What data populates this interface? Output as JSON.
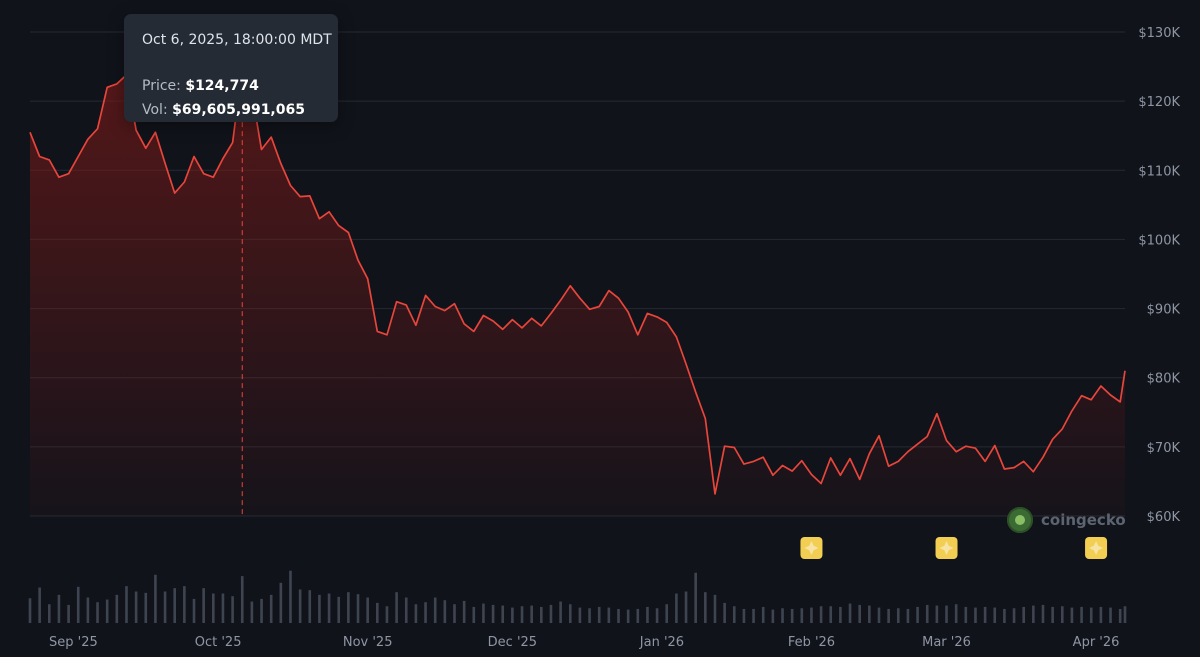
{
  "chart_data": {
    "type": "line",
    "title": "",
    "xlabel": "",
    "ylabel": "",
    "y_axis": {
      "ticks": [
        "$60K",
        "$70K",
        "$80K",
        "$90K",
        "$100K",
        "$110K",
        "$120K",
        "$130K"
      ],
      "values": [
        60000,
        70000,
        80000,
        90000,
        100000,
        110000,
        120000,
        130000
      ],
      "ylim": [
        60000,
        130000
      ]
    },
    "x_axis": {
      "ticks": [
        "Sep '25",
        "Oct '25",
        "Nov '25",
        "Dec '25",
        "Jan '26",
        "Feb '26",
        "Mar '26",
        "Apr '26"
      ],
      "dates": [
        "2025-09-01",
        "2025-10-01",
        "2025-11-01",
        "2025-12-01",
        "2026-01-01",
        "2026-02-01",
        "2026-03-01",
        "2026-04-01"
      ],
      "xlim": [
        "2025-08-23",
        "2026-04-07"
      ]
    },
    "series": [
      {
        "type": "line",
        "x": [
          "2025-08-23",
          "2025-08-25",
          "2025-08-27",
          "2025-08-29",
          "2025-08-31",
          "2025-09-02",
          "2025-09-04",
          "2025-09-06",
          "2025-09-08",
          "2025-09-10",
          "2025-09-12",
          "2025-09-14",
          "2025-09-16",
          "2025-09-18",
          "2025-09-20",
          "2025-09-22",
          "2025-09-24",
          "2025-09-26",
          "2025-09-28",
          "2025-09-30",
          "2025-10-02",
          "2025-10-04",
          "2025-10-06",
          "2025-10-08",
          "2025-10-10",
          "2025-10-12",
          "2025-10-14",
          "2025-10-16",
          "2025-10-18",
          "2025-10-20",
          "2025-10-22",
          "2025-10-24",
          "2025-10-26",
          "2025-10-28",
          "2025-10-30",
          "2025-11-01",
          "2025-11-03",
          "2025-11-05",
          "2025-11-07",
          "2025-11-09",
          "2025-11-11",
          "2025-11-13",
          "2025-11-15",
          "2025-11-17",
          "2025-11-19",
          "2025-11-21",
          "2025-11-23",
          "2025-11-25",
          "2025-11-27",
          "2025-11-29",
          "2025-12-01",
          "2025-12-03",
          "2025-12-05",
          "2025-12-07",
          "2025-12-09",
          "2025-12-11",
          "2025-12-13",
          "2025-12-15",
          "2025-12-17",
          "2025-12-19",
          "2025-12-21",
          "2025-12-23",
          "2025-12-25",
          "2025-12-27",
          "2025-12-29",
          "2025-12-31",
          "2026-01-02",
          "2026-01-04",
          "2026-01-06",
          "2026-01-08",
          "2026-01-10",
          "2026-01-12",
          "2026-01-14",
          "2026-01-16",
          "2026-01-18",
          "2026-01-20",
          "2026-01-22",
          "2026-01-24",
          "2026-01-26",
          "2026-01-28",
          "2026-01-30",
          "2026-02-01",
          "2026-02-03",
          "2026-02-05",
          "2026-02-07",
          "2026-02-09",
          "2026-02-11",
          "2026-02-13",
          "2026-02-15",
          "2026-02-17",
          "2026-02-19",
          "2026-02-21",
          "2026-02-23",
          "2026-02-25",
          "2026-02-27",
          "2026-03-01",
          "2026-03-03",
          "2026-03-05",
          "2026-03-07",
          "2026-03-09",
          "2026-03-11",
          "2026-03-13",
          "2026-03-15",
          "2026-03-17",
          "2026-03-19",
          "2026-03-21",
          "2026-03-23",
          "2026-03-25",
          "2026-03-27",
          "2026-03-29",
          "2026-03-31",
          "2026-04-02",
          "2026-04-04",
          "2026-04-06",
          "2026-04-07"
        ],
        "values": [
          115500,
          112000,
          111500,
          109000,
          109500,
          112000,
          114500,
          116000,
          122000,
          122500,
          123800,
          115800,
          113200,
          115500,
          111000,
          106700,
          108300,
          112000,
          109500,
          109000,
          111700,
          114000,
          124774,
          121200,
          113000,
          114800,
          111000,
          107800,
          106200,
          106300,
          103000,
          104000,
          102000,
          101000,
          97000,
          94300,
          86700,
          86200,
          91000,
          90500,
          87600,
          91900,
          90300,
          89700,
          90700,
          87800,
          86700,
          89000,
          88200,
          87000,
          88400,
          87200,
          88600,
          87500,
          89300,
          91200,
          93300,
          91500,
          89900,
          90300,
          92600,
          91500,
          89500,
          86200,
          89300,
          88800,
          88000,
          85900,
          82000,
          77900,
          74100,
          63200,
          70100,
          69900,
          67500,
          67900,
          68500,
          65900,
          67300,
          66500,
          68000,
          66000,
          64700,
          68400,
          65900,
          68300,
          65300,
          69000,
          71600,
          67200,
          67900,
          69300,
          70400,
          71500,
          74800,
          70900,
          69300,
          70100,
          69800,
          67900,
          70200,
          66800,
          67000,
          67900,
          66400,
          68500,
          71100,
          72600,
          75200,
          77400,
          76800,
          78800,
          77500,
          76500,
          81000
        ],
        "color": "#e8453b"
      }
    ],
    "volume": {
      "values": [
        37,
        53,
        28,
        42,
        27,
        54,
        38,
        31,
        35,
        42,
        55,
        47,
        45,
        72,
        47,
        52,
        55,
        36,
        52,
        44,
        44,
        40,
        70,
        32,
        36,
        42,
        60,
        78,
        50,
        49,
        42,
        44,
        39,
        46,
        43,
        38,
        30,
        25,
        46,
        38,
        28,
        31,
        38,
        34,
        28,
        33,
        24,
        29,
        27,
        26,
        23,
        25,
        26,
        24,
        27,
        32,
        28,
        23,
        22,
        24,
        23,
        21,
        20,
        21,
        24,
        22,
        28,
        44,
        47,
        75,
        46,
        42,
        30,
        25,
        21,
        21,
        24,
        20,
        22,
        21,
        22,
        23,
        25,
        25,
        24,
        29,
        27,
        26,
        23,
        21,
        22,
        21,
        24,
        27,
        26,
        26,
        28,
        24,
        23,
        24,
        23,
        21,
        22,
        24,
        26,
        27,
        24,
        25,
        23,
        24,
        23,
        24,
        23,
        21,
        25
      ]
    },
    "tooltip": {
      "date": "Oct 6, 2025, 18:00:00 MDT",
      "price_label": "Price:",
      "price": "$124,774",
      "vol_label": "Vol:",
      "vol": "$69,605,991,065"
    },
    "event_markers": [
      "2026-02-01",
      "2026-03-01",
      "2026-04-01"
    ],
    "watermark": "coingecko",
    "grid": true,
    "legend": "none",
    "colors": {
      "line": "#e8453b",
      "fill": "#7a1a18",
      "grid": "#262a33",
      "tick_text": "#8f96a3",
      "volume": "#3f4550",
      "marker": "#f2cf53"
    }
  }
}
